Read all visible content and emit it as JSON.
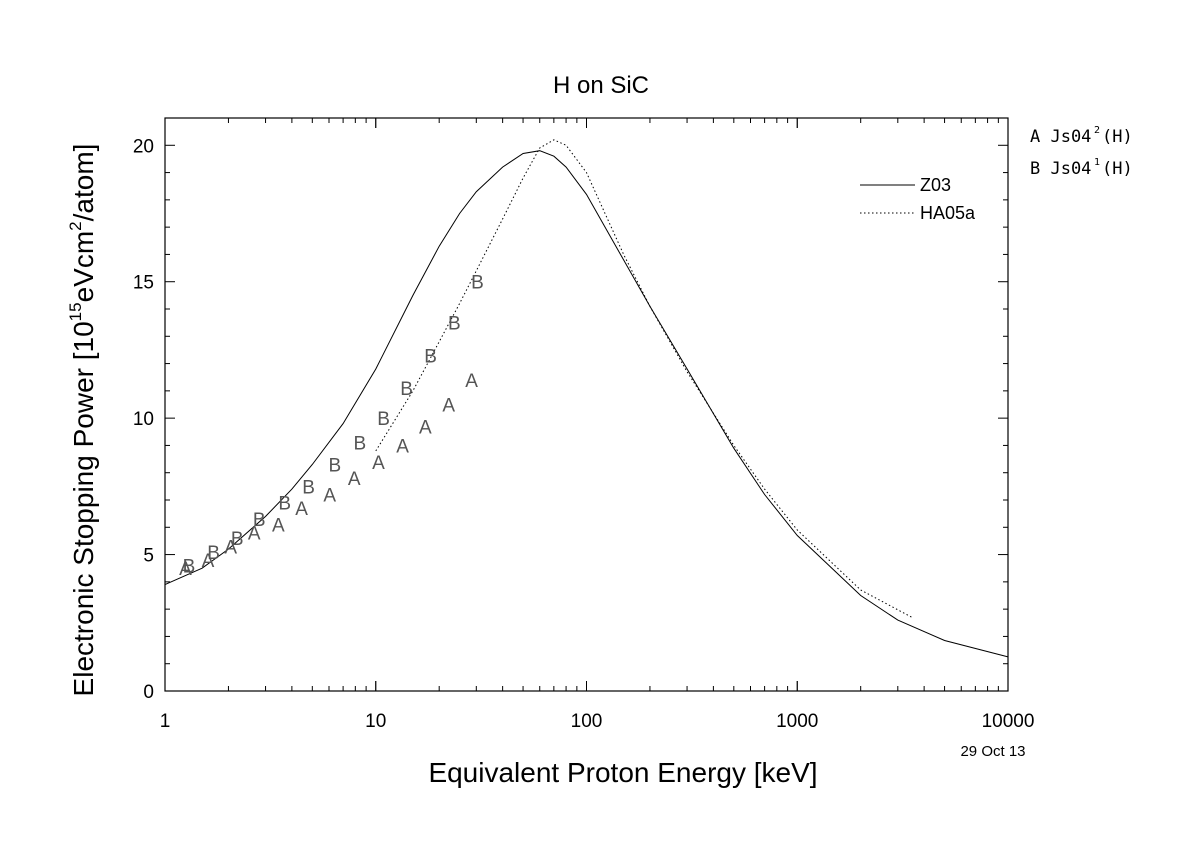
{
  "chart_data": {
    "type": "line",
    "title": "H on SiC",
    "xlabel": "Equivalent Proton Energy [keV]",
    "ylabel_parts": [
      "Electronic Stopping Power [10",
      "15",
      "eVcm",
      "2",
      "/atom]"
    ],
    "x_scale": "log",
    "xlim": [
      1,
      10000
    ],
    "ylim": [
      0,
      21
    ],
    "x_ticks": [
      1,
      10,
      100,
      1000,
      10000
    ],
    "x_tick_labels": [
      "1",
      "10",
      "100",
      "1000",
      "10000"
    ],
    "y_ticks": [
      0,
      5,
      10,
      15,
      20
    ],
    "y_tick_labels": [
      "0",
      "5",
      "10",
      "15",
      "20"
    ],
    "grid": false,
    "date": "29 Oct 13",
    "series": [
      {
        "name": "Z03",
        "style": "solid",
        "x": [
          1,
          1.5,
          2,
          3,
          4,
          5,
          7,
          10,
          15,
          20,
          25,
          30,
          40,
          50,
          60,
          70,
          80,
          100,
          150,
          200,
          300,
          500,
          700,
          1000,
          2000,
          3000,
          5000,
          10000
        ],
        "y": [
          3.9,
          4.5,
          5.2,
          6.4,
          7.4,
          8.3,
          9.8,
          11.8,
          14.5,
          16.3,
          17.5,
          18.3,
          19.2,
          19.7,
          19.8,
          19.6,
          19.2,
          18.2,
          15.8,
          14.1,
          11.8,
          8.9,
          7.2,
          5.7,
          3.5,
          2.6,
          1.85,
          1.25
        ]
      },
      {
        "name": "HA05a",
        "style": "dotted",
        "x": [
          10,
          15,
          20,
          25,
          30,
          40,
          50,
          60,
          70,
          80,
          100,
          150,
          200,
          300,
          500,
          700,
          1000,
          2000,
          3500
        ],
        "y": [
          8.8,
          11.0,
          12.8,
          14.2,
          15.4,
          17.3,
          18.8,
          19.9,
          20.2,
          20.0,
          19.0,
          16.0,
          14.1,
          11.7,
          9.0,
          7.4,
          5.9,
          3.7,
          2.7
        ]
      }
    ],
    "markers": [
      {
        "id": "A",
        "legend_text": "A Js04",
        "legend_sup": "2",
        "legend_tail": "(H)",
        "x": [
          1.25,
          1.6,
          2.05,
          2.65,
          3.45,
          4.45,
          6.05,
          7.9,
          10.3,
          13.4,
          17.2,
          22.2,
          28.5
        ],
        "y": [
          4.5,
          4.8,
          5.3,
          5.8,
          6.1,
          6.7,
          7.2,
          7.8,
          8.4,
          9.0,
          9.7,
          10.5,
          11.4
        ]
      },
      {
        "id": "B",
        "legend_text": "B Js04",
        "legend_sup": "1",
        "legend_tail": "(H)",
        "x": [
          1.3,
          1.7,
          2.2,
          2.8,
          3.7,
          4.8,
          6.4,
          8.4,
          10.9,
          14.0,
          18.2,
          23.6,
          30.4
        ],
        "y": [
          4.6,
          5.1,
          5.6,
          6.3,
          6.9,
          7.5,
          8.3,
          9.1,
          10.0,
          11.1,
          12.3,
          13.5,
          15.0
        ]
      }
    ]
  }
}
